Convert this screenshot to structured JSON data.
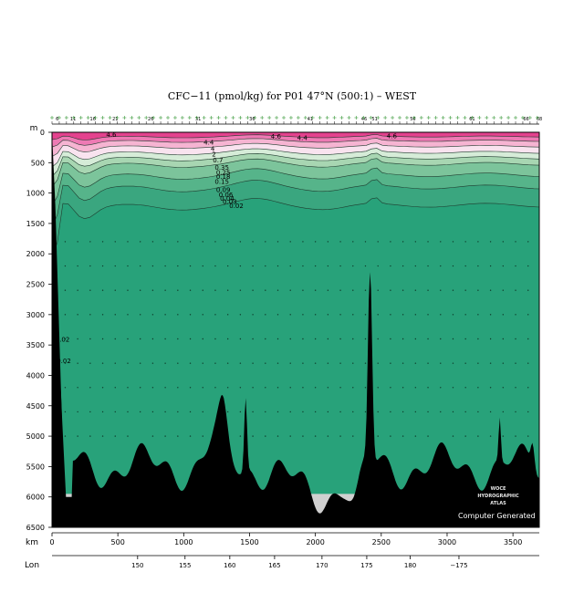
{
  "chart_data": {
    "type": "heatmap",
    "title": "CFC−11 (pmol/kg) for P01 47°N (500:1) – WEST",
    "y_axis": {
      "unit_label": "m",
      "ylim": [
        6500,
        0
      ],
      "ticks": [
        0,
        500,
        1000,
        1500,
        2000,
        2500,
        3000,
        3500,
        4000,
        4500,
        5000,
        5500,
        6000,
        6500
      ]
    },
    "x_axis": {
      "unit_label": "km",
      "xlim": [
        0,
        3700
      ],
      "ticks": [
        0,
        500,
        1000,
        1500,
        2000,
        2500,
        3000,
        3500
      ]
    },
    "lon_axis": {
      "unit_label": "Lon",
      "tick_labels": [
        "150",
        "155",
        "160",
        "165",
        "170",
        "175",
        "180",
        "−175"
      ],
      "tick_km": [
        650,
        1010,
        1350,
        1690,
        2050,
        2390,
        2720,
        3090
      ]
    },
    "station_labels": [
      {
        "label": "6",
        "km": 40
      },
      {
        "label": "11",
        "km": 160
      },
      {
        "label": "16",
        "km": 310
      },
      {
        "label": "21",
        "km": 480
      },
      {
        "label": "26",
        "km": 750
      },
      {
        "label": "31",
        "km": 1110
      },
      {
        "label": "36",
        "km": 1520
      },
      {
        "label": "41",
        "km": 1960
      },
      {
        "label": "46",
        "km": 2370
      },
      {
        "label": "51",
        "km": 2450
      },
      {
        "label": "56",
        "km": 2740
      },
      {
        "label": "61",
        "km": 3190
      },
      {
        "label": "66",
        "km": 3600
      },
      {
        "label": "68",
        "km": 3700
      }
    ],
    "contour_labels": [
      {
        "text": "4.6",
        "km": 450,
        "depth": 30
      },
      {
        "text": "4.6",
        "km": 1700,
        "depth": 60
      },
      {
        "text": "4.4",
        "km": 1900,
        "depth": 80
      },
      {
        "text": "4.6",
        "km": 2580,
        "depth": 50
      },
      {
        "text": "4.4",
        "km": 1190,
        "depth": 160
      },
      {
        "text": "4",
        "km": 1220,
        "depth": 260
      },
      {
        "text": "2",
        "km": 1230,
        "depth": 350
      },
      {
        "text": "0.7",
        "km": 1260,
        "depth": 450
      },
      {
        "text": "0.35",
        "km": 1290,
        "depth": 570
      },
      {
        "text": "0.25",
        "km": 1300,
        "depth": 650
      },
      {
        "text": "0.18",
        "km": 1300,
        "depth": 720
      },
      {
        "text": "0.15",
        "km": 1290,
        "depth": 800
      },
      {
        "text": "0.09",
        "km": 1300,
        "depth": 940
      },
      {
        "text": "0.06",
        "km": 1320,
        "depth": 1020
      },
      {
        "text": "0.04",
        "km": 1330,
        "depth": 1080
      },
      {
        "text": "0.03",
        "km": 1350,
        "depth": 1130
      },
      {
        "text": "0.02",
        "km": 1400,
        "depth": 1200
      },
      {
        "text": "0.02",
        "km": 80,
        "depth": 3400
      },
      {
        "text": "0.02",
        "km": 90,
        "depth": 3750
      }
    ],
    "color_bands": [
      {
        "range": "4.6+",
        "color": "#e4428e",
        "boundary_depth": [
          0,
          70
        ]
      },
      {
        "range": "4.4–4.6",
        "color": "#ee7ab4",
        "boundary_depth": [
          70,
          140
        ]
      },
      {
        "range": "4–4.4",
        "color": "#f6b4d2",
        "boundary_depth": [
          140,
          230
        ]
      },
      {
        "range": "2–4",
        "color": "#f9e3ef",
        "boundary_depth": [
          230,
          330
        ]
      },
      {
        "range": "0.7–2",
        "color": "#d6ecd8",
        "boundary_depth": [
          330,
          420
        ]
      },
      {
        "range": "0.35–0.7",
        "color": "#a8d6b2",
        "boundary_depth": [
          420,
          520
        ]
      },
      {
        "range": "0.15–0.35",
        "color": "#7cc49b",
        "boundary_depth": [
          520,
          700
        ]
      },
      {
        "range": "0.06–0.15",
        "color": "#56b48a",
        "boundary_depth": [
          700,
          900
        ]
      },
      {
        "range": "0.02–0.06",
        "color": "#3aa67f",
        "boundary_depth": [
          900,
          1200
        ]
      },
      {
        "range": "<0.02",
        "color": "#28a27a",
        "boundary_depth": [
          1200,
          6500
        ]
      }
    ],
    "bathymetry_color": "#000000",
    "no_data_color": "#d0d0d0",
    "grid": false
  },
  "watermark": {
    "line1": "WOCE",
    "line2": "HYDROGRAPHIC",
    "line3": "ATLAS",
    "credit": "Computer Generated"
  }
}
